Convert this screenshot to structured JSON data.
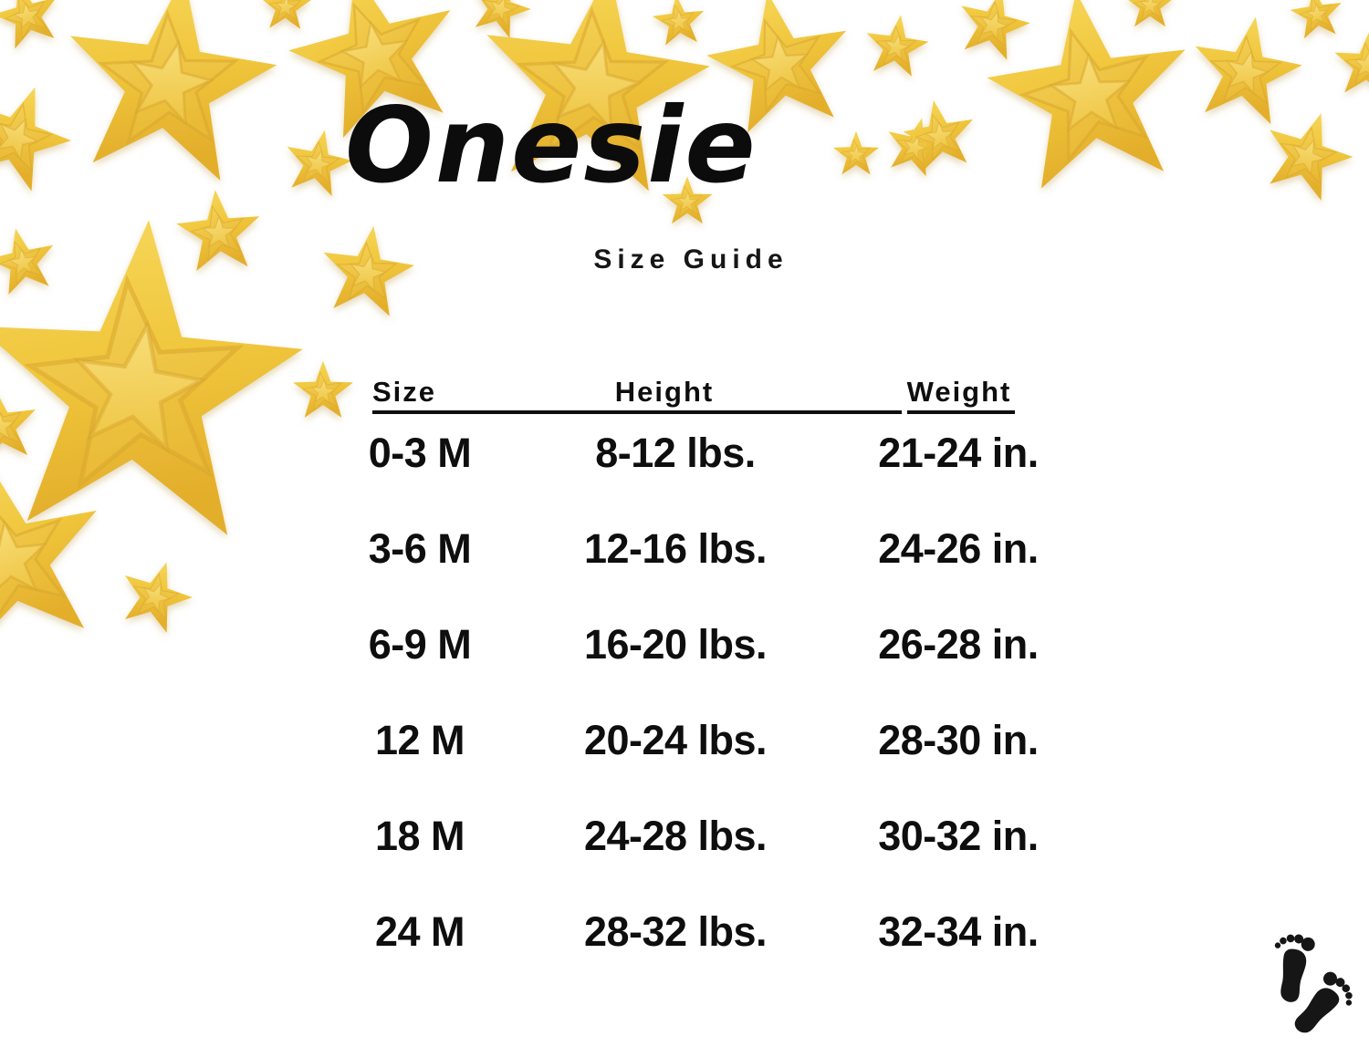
{
  "title": "Onesie",
  "subtitle": "Size Guide",
  "table": {
    "headers": [
      "Size",
      "Height",
      "Weight"
    ],
    "rows": [
      {
        "size": "0-3 M",
        "height": "8-12 lbs.",
        "weight": "21-24 in."
      },
      {
        "size": "3-6 M",
        "height": "12-16 lbs.",
        "weight": "24-26 in."
      },
      {
        "size": "6-9 M",
        "height": "16-20 lbs.",
        "weight": "26-28 in."
      },
      {
        "size": "12 M",
        "height": "20-24 lbs.",
        "weight": "28-30 in."
      },
      {
        "size": "18 M",
        "height": "24-28 lbs.",
        "weight": "30-32 in."
      },
      {
        "size": "24 M",
        "height": "28-32 lbs.",
        "weight": "32-34 in."
      }
    ]
  },
  "icons": {
    "decoration": "gold-glitter-stars",
    "logo": "baby-footprints"
  },
  "colors": {
    "star_gold": "#F0C63C",
    "star_gold_light": "#F8DD7D",
    "star_gold_dark": "#E3AE2B",
    "text": "#0E0E0E",
    "background": "#FFFFFF"
  }
}
